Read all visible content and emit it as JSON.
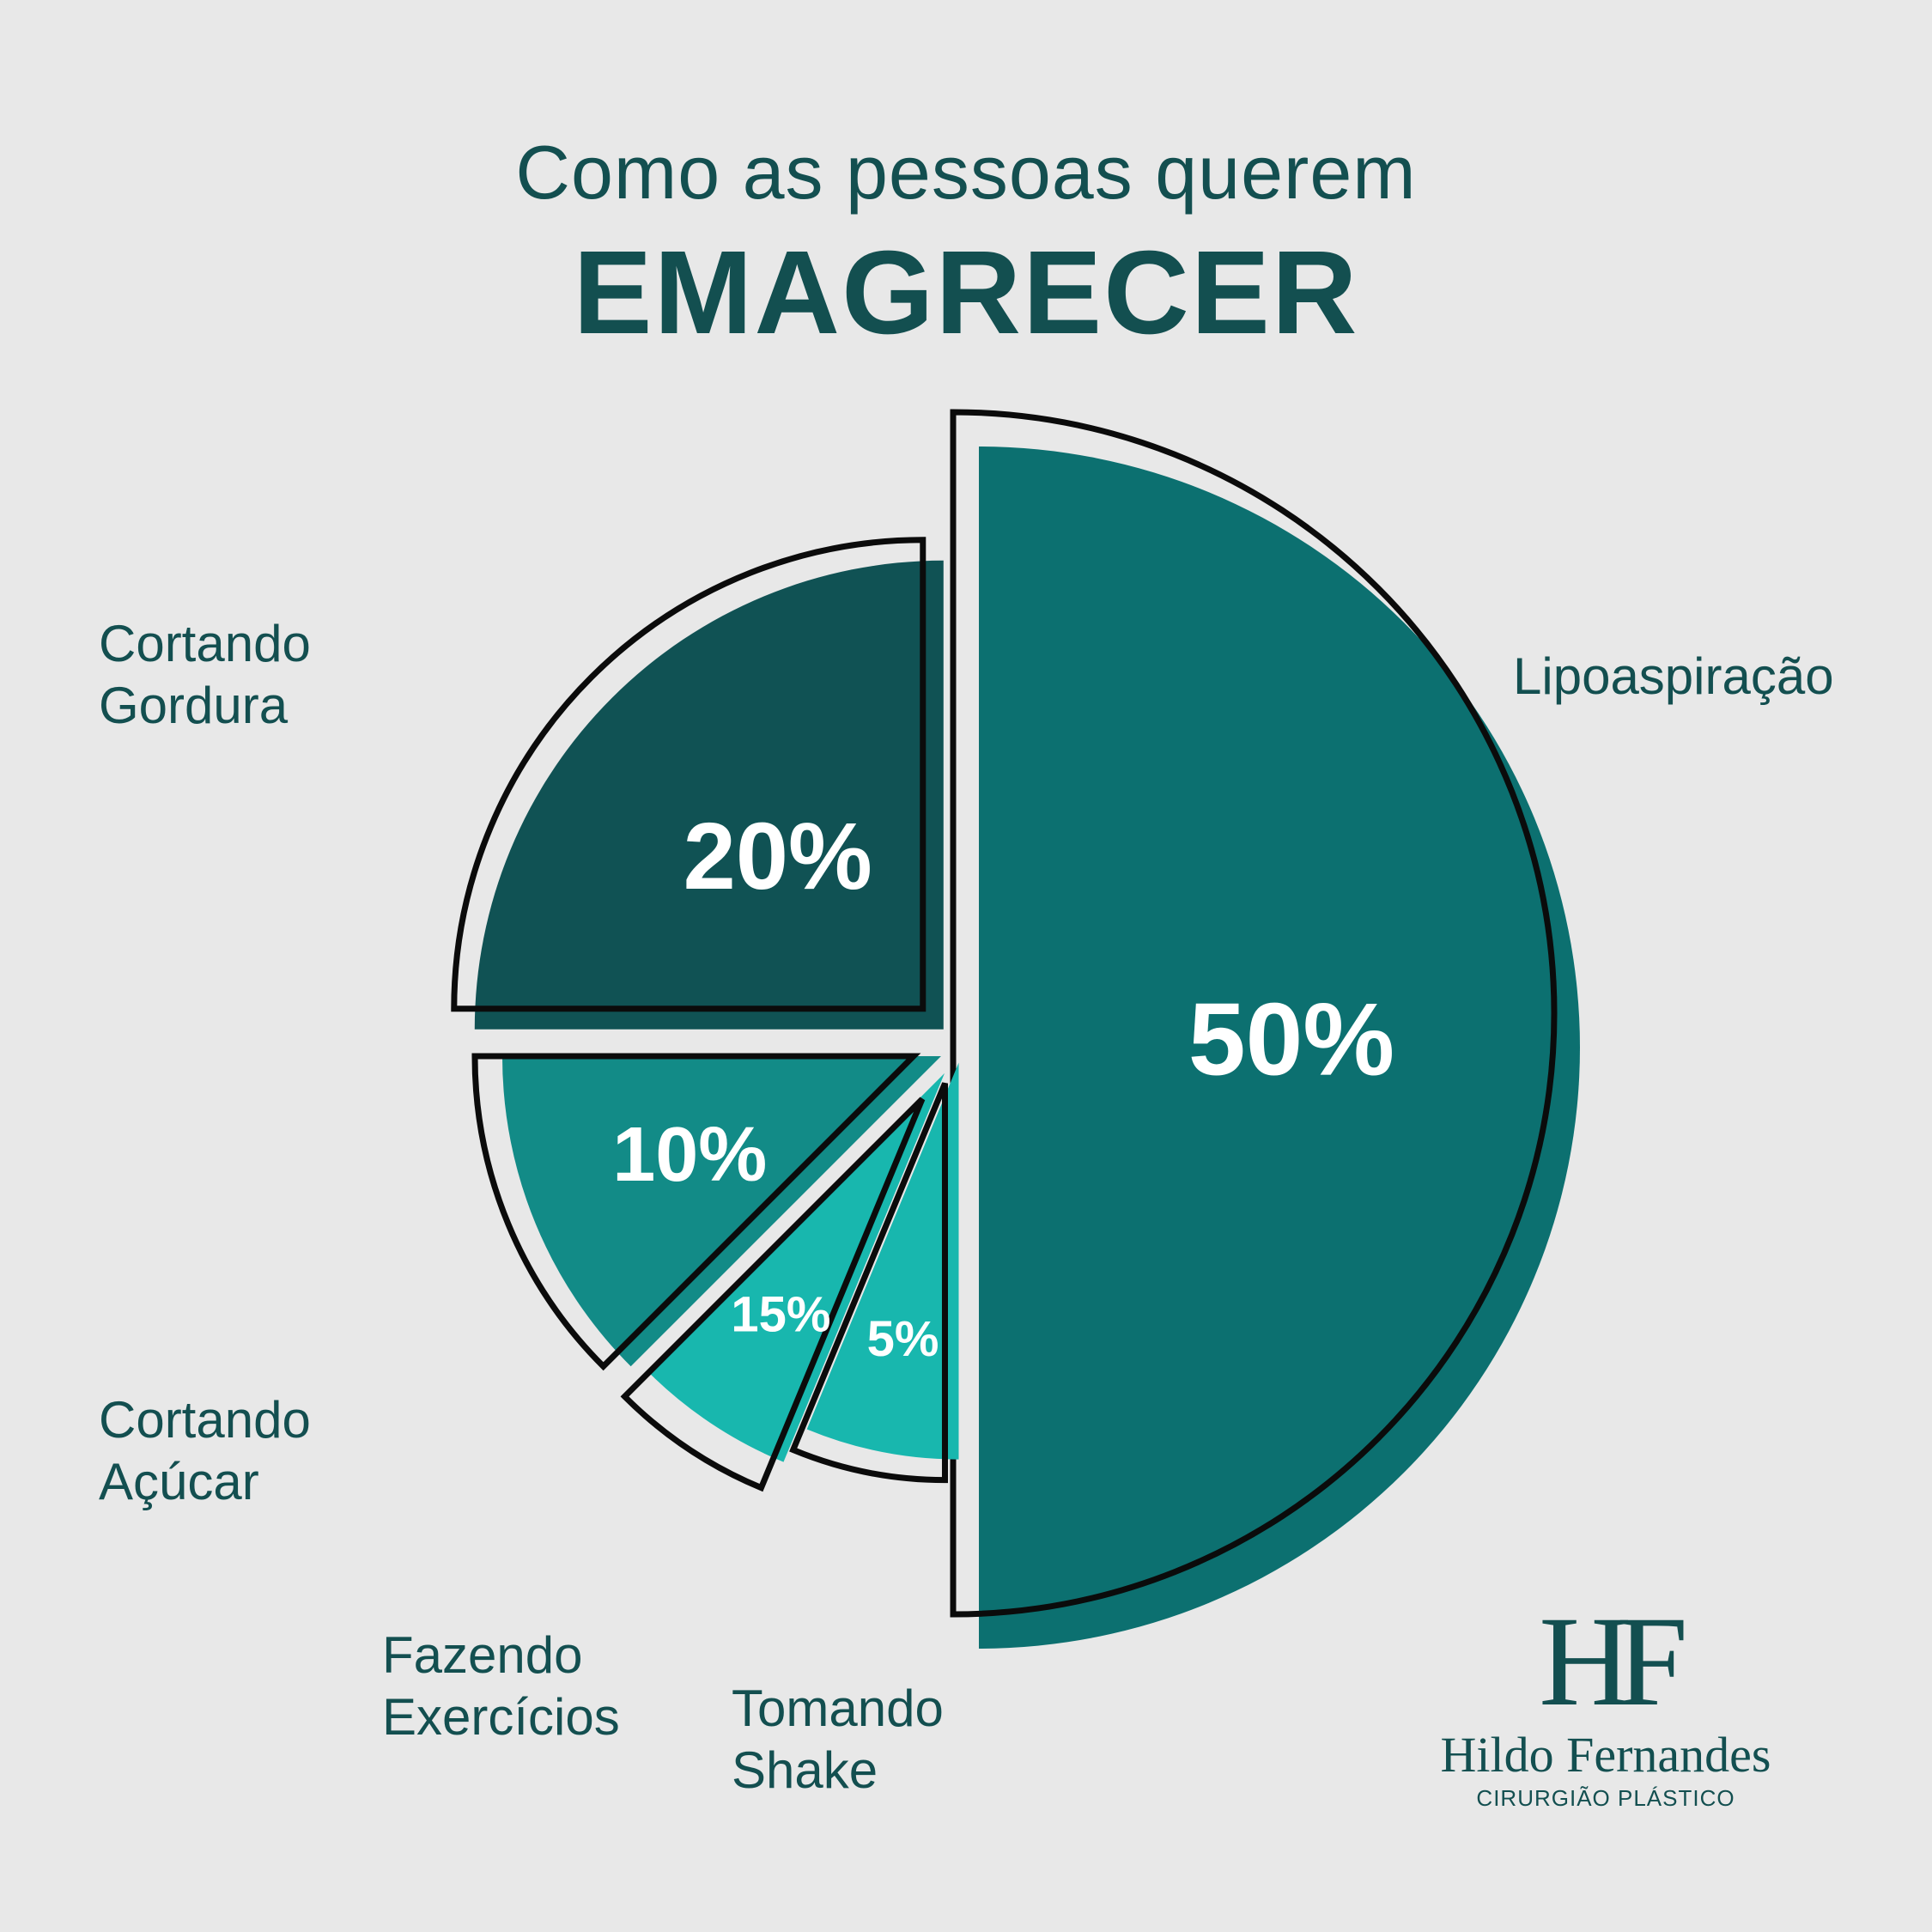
{
  "header": {
    "title_line1": "Como as pessoas querem",
    "title_line2": "EMAGRECER"
  },
  "chart_data": {
    "type": "pie",
    "categories": [
      "Lipoaspiração",
      "Cortando Gordura",
      "Cortando Açúcar",
      "Fazendo Exercícios",
      "Tomando Shake"
    ],
    "values": [
      50,
      20,
      10,
      15,
      5
    ],
    "value_labels": [
      "50%",
      "20%",
      "10%",
      "15%",
      "5%"
    ],
    "colors": [
      "#0c7070",
      "#105254",
      "#128b87",
      "#18b7ae",
      "#18b7ae"
    ],
    "category_labels": [
      "Lipoaspiração",
      "Cortando\nGordura",
      "Cortando\nAçúcar",
      "Fazendo\nExercícios",
      "Tomando\nShake"
    ],
    "legend": "none",
    "exploded": true
  },
  "logo": {
    "monogram": "HF",
    "name": "Hildo Fernandes",
    "subtitle": "CIRURGIÃO PLÁSTICO"
  }
}
